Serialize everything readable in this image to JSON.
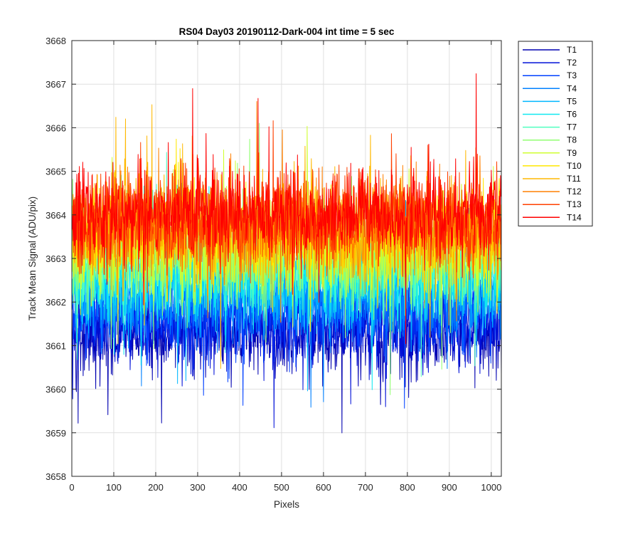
{
  "chart_data": {
    "type": "line",
    "title": "RS04 Day03 20190112-Dark-004 int time = 5 sec",
    "xlabel": "Pixels",
    "ylabel": "Track Mean Signal (ADU/pix)",
    "xlim": [
      0,
      1024
    ],
    "ylim": [
      3658,
      3668
    ],
    "xticks": [
      0,
      100,
      200,
      300,
      400,
      500,
      600,
      700,
      800,
      900,
      1000
    ],
    "yticks": [
      3658,
      3659,
      3660,
      3661,
      3662,
      3663,
      3664,
      3665,
      3666,
      3667,
      3668
    ],
    "grid": true,
    "legend_position": "outside-top-right",
    "x_range": [
      1,
      1024
    ],
    "series": [
      {
        "name": "T1",
        "color": "#0000b0",
        "mean": 3661.3,
        "spread": 0.75
      },
      {
        "name": "T2",
        "color": "#0010d8",
        "mean": 3661.5,
        "spread": 0.75
      },
      {
        "name": "T3",
        "color": "#0040ff",
        "mean": 3661.8,
        "spread": 0.75
      },
      {
        "name": "T4",
        "color": "#0080ff",
        "mean": 3662.1,
        "spread": 0.8
      },
      {
        "name": "T5",
        "color": "#00b8ff",
        "mean": 3662.4,
        "spread": 0.8
      },
      {
        "name": "T6",
        "color": "#10e8f0",
        "mean": 3662.6,
        "spread": 0.8
      },
      {
        "name": "T7",
        "color": "#50ffc0",
        "mean": 3662.9,
        "spread": 0.85
      },
      {
        "name": "T8",
        "color": "#90ff70",
        "mean": 3663.1,
        "spread": 0.85
      },
      {
        "name": "T9",
        "color": "#d0ff30",
        "mean": 3663.3,
        "spread": 0.9
      },
      {
        "name": "T10",
        "color": "#ffe800",
        "mean": 3663.5,
        "spread": 0.9
      },
      {
        "name": "T11",
        "color": "#ffb800",
        "mean": 3663.6,
        "spread": 0.9
      },
      {
        "name": "T12",
        "color": "#ff8000",
        "mean": 3663.8,
        "spread": 0.9
      },
      {
        "name": "T13",
        "color": "#ff4000",
        "mean": 3663.9,
        "spread": 0.85
      },
      {
        "name": "T14",
        "color": "#ff0000",
        "mean": 3664.0,
        "spread": 0.85
      }
    ]
  }
}
